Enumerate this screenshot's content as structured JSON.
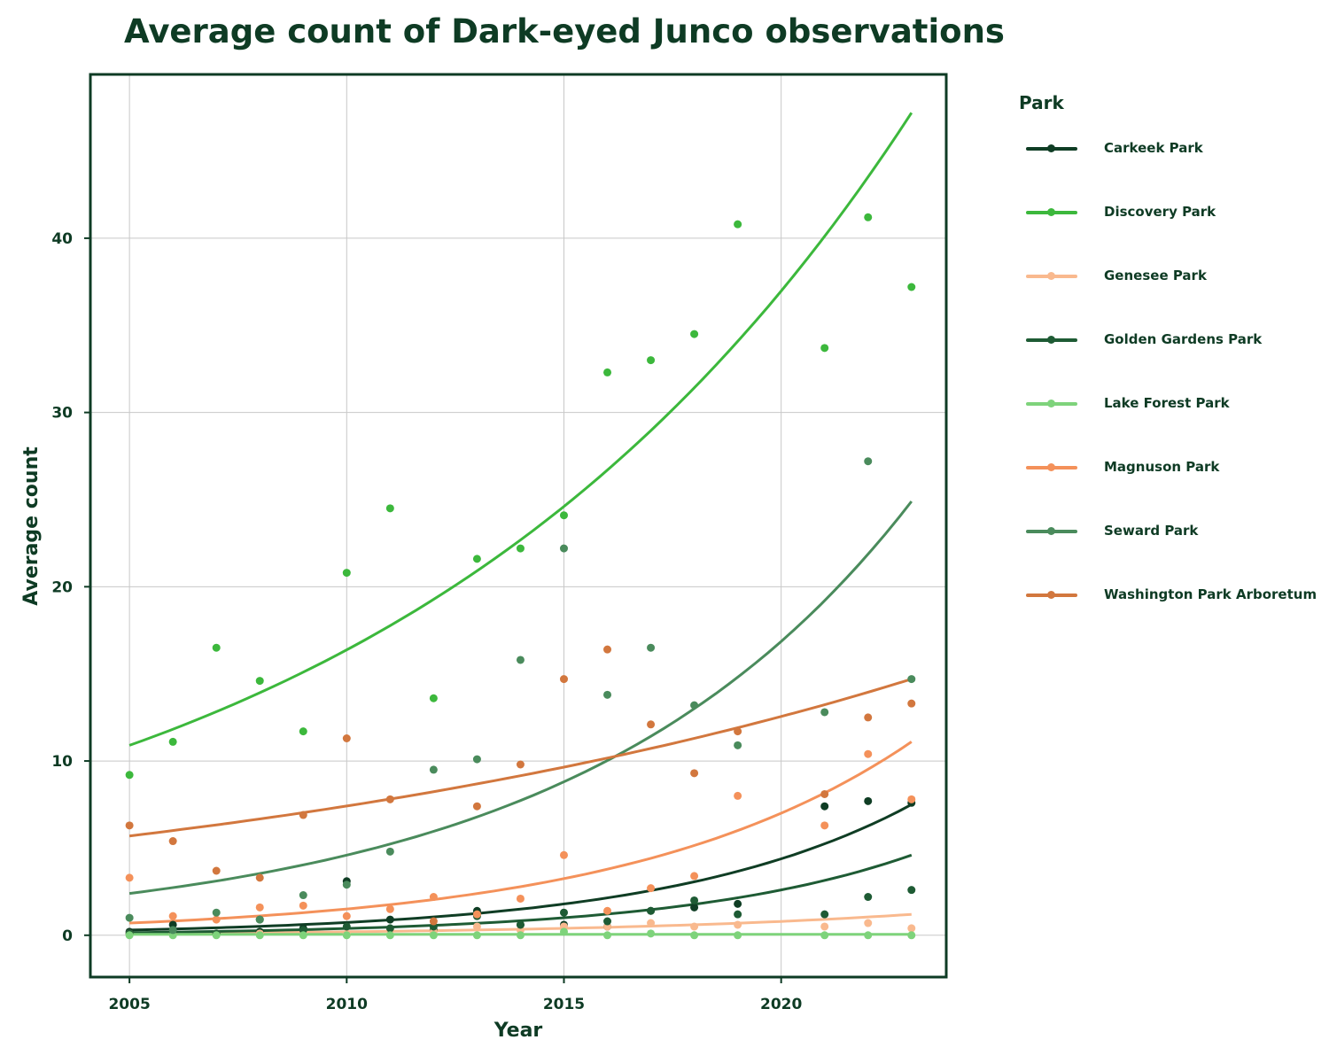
{
  "chart_data": {
    "type": "scatter",
    "title": "Average count of Dark-eyed Junco observations",
    "xlabel": "Year",
    "ylabel": "Average count",
    "xlim": [
      2004.1,
      2023.8
    ],
    "ylim": [
      -2.4,
      49.4
    ],
    "x_ticks": [
      2005,
      2010,
      2015,
      2020
    ],
    "y_ticks": [
      0,
      10,
      20,
      30,
      40
    ],
    "grid": true,
    "legend_title": "Park",
    "legend_position": "right",
    "trend": "exponential fit per series",
    "series": [
      {
        "name": "Carkeek Park",
        "color": "#0f3d24",
        "points": [
          [
            2005,
            0.2
          ],
          [
            2006,
            0.6
          ],
          [
            2007,
            0.1
          ],
          [
            2008,
            0.2
          ],
          [
            2009,
            0.4
          ],
          [
            2010,
            3.1
          ],
          [
            2011,
            0.9
          ],
          [
            2012,
            0.3
          ],
          [
            2013,
            1.4
          ],
          [
            2014,
            0.6
          ],
          [
            2015,
            0.6
          ],
          [
            2016,
            0.5
          ],
          [
            2017,
            1.4
          ],
          [
            2018,
            1.6
          ],
          [
            2019,
            1.8
          ],
          [
            2021,
            7.4
          ],
          [
            2022,
            7.7
          ],
          [
            2023,
            7.6
          ]
        ],
        "fit": [
          0.3,
          7.5
        ]
      },
      {
        "name": "Discovery Park",
        "color": "#3cb83c",
        "points": [
          [
            2005,
            9.2
          ],
          [
            2006,
            11.1
          ],
          [
            2007,
            16.5
          ],
          [
            2008,
            14.6
          ],
          [
            2009,
            11.7
          ],
          [
            2010,
            20.8
          ],
          [
            2011,
            24.5
          ],
          [
            2012,
            13.6
          ],
          [
            2013,
            21.6
          ],
          [
            2014,
            22.2
          ],
          [
            2015,
            24.1
          ],
          [
            2016,
            32.3
          ],
          [
            2017,
            33.0
          ],
          [
            2018,
            34.5
          ],
          [
            2019,
            40.8
          ],
          [
            2021,
            33.7
          ],
          [
            2022,
            41.2
          ],
          [
            2023,
            37.2
          ]
        ],
        "fit": [
          10.9,
          47.2
        ]
      },
      {
        "name": "Genesee Park",
        "color": "#f9b98e",
        "points": [
          [
            2005,
            0.1
          ],
          [
            2006,
            0.1
          ],
          [
            2007,
            0.1
          ],
          [
            2008,
            0.1
          ],
          [
            2009,
            0.2
          ],
          [
            2010,
            0.1
          ],
          [
            2011,
            0.3
          ],
          [
            2012,
            0.2
          ],
          [
            2013,
            0.5
          ],
          [
            2014,
            0.3
          ],
          [
            2015,
            0.5
          ],
          [
            2016,
            0.5
          ],
          [
            2017,
            0.7
          ],
          [
            2018,
            0.5
          ],
          [
            2019,
            0.6
          ],
          [
            2021,
            0.5
          ],
          [
            2022,
            0.7
          ],
          [
            2023,
            0.4
          ]
        ],
        "fit": [
          0.1,
          1.2
        ]
      },
      {
        "name": "Golden Gardens Park",
        "color": "#1e5b34",
        "points": [
          [
            2005,
            0.1
          ],
          [
            2006,
            0.2
          ],
          [
            2007,
            0.1
          ],
          [
            2008,
            0.9
          ],
          [
            2009,
            0.3
          ],
          [
            2010,
            0.5
          ],
          [
            2011,
            0.4
          ],
          [
            2012,
            0.5
          ],
          [
            2013,
            1.1
          ],
          [
            2014,
            0.6
          ],
          [
            2015,
            1.3
          ],
          [
            2016,
            0.8
          ],
          [
            2017,
            1.4
          ],
          [
            2018,
            2.0
          ],
          [
            2019,
            1.2
          ],
          [
            2021,
            1.2
          ],
          [
            2022,
            2.2
          ],
          [
            2023,
            2.6
          ]
        ],
        "fit": [
          0.15,
          4.6
        ]
      },
      {
        "name": "Lake Forest Park",
        "color": "#7ed37b",
        "points": [
          [
            2005,
            0.0
          ],
          [
            2006,
            0.0
          ],
          [
            2007,
            0.0
          ],
          [
            2008,
            0.0
          ],
          [
            2009,
            0.0
          ],
          [
            2010,
            0.0
          ],
          [
            2011,
            0.0
          ],
          [
            2012,
            0.0
          ],
          [
            2013,
            0.0
          ],
          [
            2014,
            0.0
          ],
          [
            2015,
            0.2
          ],
          [
            2016,
            0.0
          ],
          [
            2017,
            0.1
          ],
          [
            2018,
            0.0
          ],
          [
            2019,
            0.0
          ],
          [
            2021,
            0.0
          ],
          [
            2022,
            0.0
          ],
          [
            2023,
            0.0
          ]
        ],
        "fit": [
          0.05,
          0.05
        ]
      },
      {
        "name": "Magnuson Park",
        "color": "#f4915a",
        "points": [
          [
            2005,
            3.3
          ],
          [
            2006,
            1.1
          ],
          [
            2007,
            0.9
          ],
          [
            2008,
            1.6
          ],
          [
            2009,
            1.7
          ],
          [
            2010,
            1.1
          ],
          [
            2011,
            1.5
          ],
          [
            2012,
            2.2
          ],
          [
            2013,
            1.2
          ],
          [
            2014,
            2.1
          ],
          [
            2015,
            4.6
          ],
          [
            2016,
            1.4
          ],
          [
            2017,
            2.7
          ],
          [
            2018,
            3.4
          ],
          [
            2019,
            8.0
          ],
          [
            2021,
            6.3
          ],
          [
            2022,
            10.4
          ],
          [
            2023,
            7.8
          ]
        ],
        "fit": [
          0.7,
          11.1
        ]
      },
      {
        "name": "Seward Park",
        "color": "#4a8b5c",
        "points": [
          [
            2005,
            1.0
          ],
          [
            2006,
            0.3
          ],
          [
            2007,
            1.3
          ],
          [
            2008,
            0.9
          ],
          [
            2009,
            2.3
          ],
          [
            2010,
            2.9
          ],
          [
            2011,
            4.8
          ],
          [
            2012,
            9.5
          ],
          [
            2013,
            10.1
          ],
          [
            2014,
            15.8
          ],
          [
            2015,
            22.2
          ],
          [
            2016,
            13.8
          ],
          [
            2017,
            16.5
          ],
          [
            2018,
            13.2
          ],
          [
            2019,
            10.9
          ],
          [
            2021,
            12.8
          ],
          [
            2022,
            27.2
          ],
          [
            2023,
            14.7
          ]
        ],
        "fit": [
          2.4,
          24.9
        ]
      },
      {
        "name": "Washington Park Arboretum",
        "color": "#d2773e",
        "points": [
          [
            2005,
            6.3
          ],
          [
            2006,
            5.4
          ],
          [
            2007,
            3.7
          ],
          [
            2008,
            3.3
          ],
          [
            2009,
            6.9
          ],
          [
            2010,
            11.3
          ],
          [
            2011,
            7.8
          ],
          [
            2012,
            0.8
          ],
          [
            2013,
            7.4
          ],
          [
            2014,
            9.8
          ],
          [
            2015,
            14.7
          ],
          [
            2016,
            16.4
          ],
          [
            2017,
            12.1
          ],
          [
            2018,
            9.3
          ],
          [
            2019,
            11.7
          ],
          [
            2021,
            8.1
          ],
          [
            2022,
            12.5
          ],
          [
            2023,
            13.3
          ]
        ],
        "fit": [
          5.7,
          14.7
        ]
      }
    ]
  }
}
